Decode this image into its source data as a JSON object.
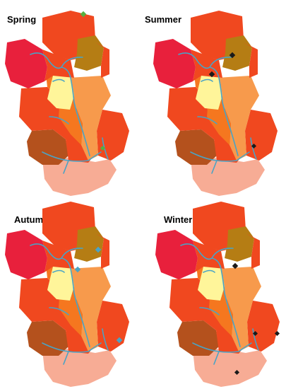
{
  "colors": {
    "dark_red": "#e8203c",
    "red_orange": "#f0481f",
    "orange": "#f5771f",
    "light_orange": "#f79a4c",
    "brown": "#b4511d",
    "olive_brown": "#b57d14",
    "pale_yellow": "#fff59a",
    "salmon": "#f7ac95",
    "river": "#4aa3c5"
  },
  "panels": [
    {
      "title": "Spring",
      "markers": [
        {
          "site": "north",
          "color": "#55b040"
        },
        {
          "site": "south-east",
          "color": "#55b040"
        }
      ]
    },
    {
      "title": "Summer",
      "markers": [
        {
          "site": "north-east",
          "color": "#1a1a1a"
        },
        {
          "site": "center",
          "color": "#1a1a1a"
        },
        {
          "site": "south-east",
          "color": "#1a1a1a"
        }
      ]
    },
    {
      "title": "Autumn",
      "markers": [
        {
          "site": "north-east",
          "color": "#4aa3c5"
        },
        {
          "site": "center",
          "color": "#4aa3c5"
        },
        {
          "site": "south-east",
          "color": "#4aa3c5"
        }
      ]
    },
    {
      "title": "Winter",
      "markers": [
        {
          "site": "center",
          "color": "#1a1a1a"
        },
        {
          "site": "south-central",
          "color": "#1a1a1a"
        },
        {
          "site": "south-east",
          "color": "#1a1a1a"
        },
        {
          "site": "south",
          "color": "#1a1a1a"
        }
      ]
    }
  ]
}
